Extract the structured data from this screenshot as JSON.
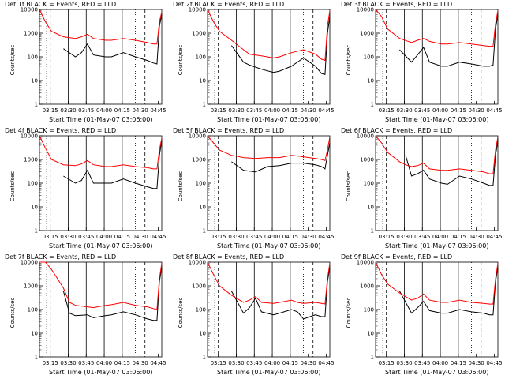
{
  "shared": {
    "x_label": "Start Time (01-May-07 03:06:00)",
    "y_label": "Counts/sec",
    "x_ticks": [
      "03:15",
      "03:30",
      "03:45",
      "04:00",
      "04:15",
      "04:30",
      "04:45"
    ],
    "y_ticks": [
      "1",
      "10",
      "100",
      "1000",
      "10000"
    ],
    "ylim": [
      1,
      10000
    ],
    "xlim_minutes": [
      0,
      102
    ],
    "colors": {
      "events": "#000000",
      "lld": "#ff0000",
      "axes": "#000000"
    }
  },
  "chart_data": [
    {
      "type": "line",
      "title": "Det 1f BLACK = Events, RED = LLD",
      "x_label": "Start Time (01-May-07 03:06:00)",
      "y_label": "Counts/sec",
      "x": [
        0,
        5,
        10,
        20,
        30,
        35,
        40,
        45,
        55,
        60,
        70,
        80,
        90,
        95,
        98,
        100,
        102
      ],
      "series": [
        {
          "name": "Events",
          "color": "#000000",
          "values": [
            null,
            null,
            null,
            220,
            100,
            150,
            350,
            120,
            100,
            100,
            150,
            100,
            70,
            55,
            50,
            2000,
            6000
          ]
        },
        {
          "name": "LLD",
          "color": "#ff0000",
          "values": [
            10000,
            3000,
            1200,
            700,
            600,
            700,
            900,
            600,
            500,
            500,
            600,
            500,
            400,
            350,
            350,
            3000,
            8000
          ]
        }
      ]
    },
    {
      "type": "line",
      "title": "Det 2f BLACK = Events, RED = LLD",
      "x_label": "Start Time (01-May-07 03:06:00)",
      "y_label": "Counts/sec",
      "x": [
        0,
        5,
        10,
        20,
        30,
        35,
        45,
        55,
        60,
        70,
        80,
        90,
        95,
        98,
        100,
        102
      ],
      "series": [
        {
          "name": "Events",
          "color": "#000000",
          "values": [
            null,
            null,
            null,
            300,
            60,
            45,
            30,
            22,
            25,
            40,
            90,
            40,
            20,
            18,
            1000,
            5000
          ]
        },
        {
          "name": "LLD",
          "color": "#ff0000",
          "values": [
            10000,
            3000,
            1200,
            500,
            200,
            130,
            110,
            90,
            100,
            150,
            200,
            130,
            80,
            70,
            2000,
            9000
          ]
        }
      ]
    },
    {
      "type": "line",
      "title": "Det 3f BLACK = Events, RED = LLD",
      "x_label": "Start Time (01-May-07 03:06:00)",
      "y_label": "Counts/sec",
      "x": [
        0,
        5,
        10,
        20,
        30,
        35,
        40,
        45,
        55,
        60,
        70,
        80,
        90,
        95,
        98,
        100,
        102
      ],
      "series": [
        {
          "name": "Events",
          "color": "#000000",
          "values": [
            null,
            null,
            null,
            200,
            60,
            120,
            250,
            60,
            40,
            40,
            60,
            50,
            40,
            40,
            45,
            1500,
            6000
          ]
        },
        {
          "name": "LLD",
          "color": "#ff0000",
          "values": [
            10000,
            5000,
            1500,
            600,
            400,
            500,
            600,
            450,
            350,
            350,
            400,
            350,
            300,
            280,
            280,
            2500,
            9000
          ]
        }
      ]
    },
    {
      "type": "line",
      "title": "Det 4f BLACK = Events, RED = LLD",
      "x_label": "Start Time (01-May-07 03:06:00)",
      "y_label": "Counts/sec",
      "x": [
        0,
        5,
        10,
        20,
        30,
        35,
        40,
        45,
        55,
        60,
        70,
        80,
        90,
        95,
        98,
        100,
        102
      ],
      "series": [
        {
          "name": "Events",
          "color": "#000000",
          "values": [
            null,
            null,
            null,
            200,
            100,
            130,
            350,
            100,
            100,
            100,
            150,
            100,
            70,
            60,
            60,
            1500,
            6000
          ]
        },
        {
          "name": "LLD",
          "color": "#ff0000",
          "values": [
            10000,
            3000,
            1000,
            600,
            550,
            650,
            900,
            600,
            500,
            500,
            600,
            500,
            450,
            400,
            400,
            2500,
            8000
          ]
        }
      ]
    },
    {
      "type": "line",
      "title": "Det 5f BLACK = Events, RED = LLD",
      "x_label": "Start Time (01-May-07 03:06:00)",
      "y_label": "Counts/sec",
      "x": [
        0,
        5,
        10,
        20,
        30,
        40,
        50,
        60,
        70,
        80,
        90,
        95,
        98,
        100,
        102
      ],
      "series": [
        {
          "name": "Events",
          "color": "#000000",
          "values": [
            null,
            null,
            null,
            800,
            350,
            300,
            500,
            550,
            700,
            700,
            600,
            500,
            400,
            1500,
            5000
          ]
        },
        {
          "name": "LLD",
          "color": "#ff0000",
          "values": [
            10000,
            5000,
            2500,
            1500,
            1200,
            1100,
            1200,
            1200,
            1500,
            1300,
            1100,
            1000,
            900,
            2500,
            9000
          ]
        }
      ]
    },
    {
      "type": "line",
      "title": "Det 6f BLACK = Events, RED = LLD",
      "x_label": "Start Time (01-May-07 03:06:00)",
      "y_label": "Counts/sec",
      "x": [
        0,
        5,
        10,
        20,
        25,
        30,
        35,
        40,
        45,
        55,
        60,
        70,
        80,
        90,
        95,
        98,
        100,
        102
      ],
      "series": [
        {
          "name": "Events",
          "color": "#000000",
          "values": [
            null,
            null,
            null,
            null,
            1500,
            200,
            250,
            350,
            150,
            100,
            90,
            200,
            150,
            100,
            80,
            80,
            1500,
            6000
          ]
        },
        {
          "name": "LLD",
          "color": "#ff0000",
          "values": [
            10000,
            5000,
            2000,
            800,
            600,
            500,
            550,
            700,
            400,
            350,
            350,
            400,
            350,
            300,
            250,
            250,
            2500,
            9000
          ]
        }
      ]
    },
    {
      "type": "line",
      "title": "Det 7f BLACK = Events, RED = LLD",
      "x_label": "Start Time (01-May-07 03:06:00)",
      "y_label": "Counts/sec",
      "x": [
        0,
        5,
        10,
        20,
        25,
        30,
        40,
        45,
        55,
        60,
        70,
        80,
        90,
        95,
        98,
        100,
        102
      ],
      "series": [
        {
          "name": "Events",
          "color": "#000000",
          "values": [
            null,
            null,
            null,
            600,
            70,
            55,
            60,
            45,
            55,
            60,
            80,
            60,
            40,
            35,
            35,
            1500,
            6000
          ]
        },
        {
          "name": "LLD",
          "color": "#ff0000",
          "values": [
            10000,
            10000,
            5000,
            800,
            200,
            150,
            130,
            120,
            150,
            160,
            200,
            150,
            130,
            110,
            100,
            2000,
            9000
          ]
        }
      ]
    },
    {
      "type": "line",
      "title": "Det 8f BLACK = Events, RED = LLD",
      "x_label": "Start Time (01-May-07 03:06:00)",
      "y_label": "Counts/sec",
      "x": [
        0,
        5,
        10,
        20,
        30,
        35,
        40,
        45,
        55,
        60,
        70,
        75,
        80,
        90,
        95,
        98,
        100,
        102
      ],
      "series": [
        {
          "name": "Events",
          "color": "#000000",
          "values": [
            null,
            null,
            null,
            600,
            70,
            120,
            300,
            80,
            60,
            70,
            100,
            80,
            40,
            60,
            50,
            50,
            1500,
            6000
          ]
        },
        {
          "name": "LLD",
          "color": "#ff0000",
          "values": [
            10000,
            3000,
            1000,
            400,
            200,
            250,
            350,
            200,
            180,
            200,
            250,
            200,
            180,
            200,
            180,
            170,
            2000,
            9000
          ]
        }
      ]
    },
    {
      "type": "line",
      "title": "Det 9f BLACK = Events, RED = LLD",
      "x_label": "Start Time (01-May-07 03:06:00)",
      "y_label": "Counts/sec",
      "x": [
        0,
        5,
        10,
        20,
        30,
        35,
        40,
        45,
        55,
        60,
        70,
        80,
        90,
        95,
        98,
        100,
        102
      ],
      "series": [
        {
          "name": "Events",
          "color": "#000000",
          "values": [
            null,
            null,
            null,
            600,
            70,
            120,
            220,
            90,
            70,
            70,
            100,
            80,
            70,
            60,
            60,
            1500,
            6000
          ]
        },
        {
          "name": "LLD",
          "color": "#ff0000",
          "values": [
            10000,
            3000,
            1200,
            500,
            250,
            300,
            450,
            250,
            200,
            200,
            250,
            200,
            180,
            170,
            170,
            2000,
            9000
          ]
        }
      ]
    }
  ]
}
